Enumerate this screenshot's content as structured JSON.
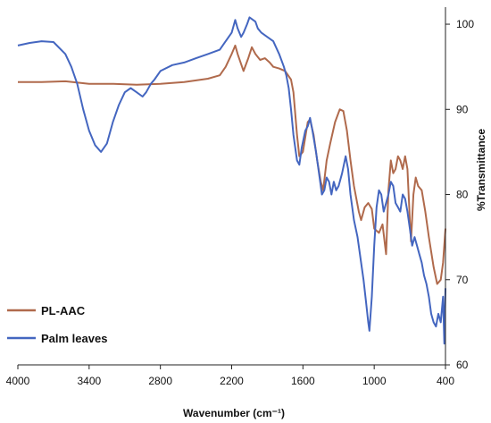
{
  "chart_data": {
    "type": "line",
    "xlabel": "Wavenumber (cm⁻¹)",
    "ylabel": "%Transmittance",
    "xlim": [
      4000,
      400
    ],
    "ylim": [
      60,
      102
    ],
    "x_ticks": [
      4000,
      3400,
      2800,
      2200,
      1600,
      1000,
      400
    ],
    "y_ticks": [
      60,
      70,
      80,
      90,
      100
    ],
    "y_axis_side": "right",
    "grid": false,
    "legend_position": "bottom-left",
    "series": [
      {
        "name": "PL-AAC",
        "color": "#b06a4c",
        "points": [
          [
            4000,
            93.2
          ],
          [
            3800,
            93.2
          ],
          [
            3600,
            93.3
          ],
          [
            3400,
            93.0
          ],
          [
            3200,
            93.0
          ],
          [
            3000,
            92.9
          ],
          [
            2800,
            93.0
          ],
          [
            2600,
            93.2
          ],
          [
            2400,
            93.6
          ],
          [
            2300,
            94.0
          ],
          [
            2250,
            95.0
          ],
          [
            2200,
            96.5
          ],
          [
            2170,
            97.5
          ],
          [
            2150,
            96.5
          ],
          [
            2100,
            94.5
          ],
          [
            2060,
            96.0
          ],
          [
            2030,
            97.3
          ],
          [
            2000,
            96.5
          ],
          [
            1960,
            95.8
          ],
          [
            1920,
            96.0
          ],
          [
            1880,
            95.5
          ],
          [
            1850,
            95.0
          ],
          [
            1800,
            94.8
          ],
          [
            1750,
            94.5
          ],
          [
            1700,
            93.5
          ],
          [
            1680,
            92.0
          ],
          [
            1650,
            87.0
          ],
          [
            1630,
            84.5
          ],
          [
            1600,
            85.0
          ],
          [
            1560,
            88.5
          ],
          [
            1540,
            88.8
          ],
          [
            1510,
            87.0
          ],
          [
            1480,
            84.0
          ],
          [
            1450,
            81.5
          ],
          [
            1430,
            80.5
          ],
          [
            1400,
            84.0
          ],
          [
            1370,
            86.0
          ],
          [
            1330,
            88.5
          ],
          [
            1290,
            90.0
          ],
          [
            1260,
            89.8
          ],
          [
            1230,
            87.5
          ],
          [
            1200,
            84.0
          ],
          [
            1170,
            81.0
          ],
          [
            1130,
            78.0
          ],
          [
            1110,
            77.0
          ],
          [
            1080,
            78.5
          ],
          [
            1050,
            79.0
          ],
          [
            1020,
            78.3
          ],
          [
            1000,
            76.0
          ],
          [
            960,
            75.5
          ],
          [
            930,
            76.5
          ],
          [
            900,
            73.0
          ],
          [
            880,
            80.5
          ],
          [
            860,
            84.0
          ],
          [
            840,
            82.5
          ],
          [
            820,
            83.0
          ],
          [
            800,
            84.5
          ],
          [
            780,
            84.0
          ],
          [
            760,
            83.0
          ],
          [
            740,
            84.5
          ],
          [
            720,
            83.0
          ],
          [
            700,
            77.0
          ],
          [
            690,
            74.5
          ],
          [
            670,
            80.0
          ],
          [
            650,
            82.0
          ],
          [
            630,
            81.0
          ],
          [
            600,
            80.5
          ],
          [
            570,
            78.0
          ],
          [
            540,
            75.0
          ],
          [
            500,
            71.5
          ],
          [
            470,
            69.5
          ],
          [
            440,
            70.0
          ],
          [
            420,
            72.0
          ],
          [
            400,
            76.0
          ]
        ]
      },
      {
        "name": "Palm leaves",
        "color": "#4466c0",
        "points": [
          [
            4000,
            97.5
          ],
          [
            3900,
            97.8
          ],
          [
            3800,
            98.0
          ],
          [
            3700,
            97.9
          ],
          [
            3600,
            96.5
          ],
          [
            3550,
            95.0
          ],
          [
            3500,
            93.0
          ],
          [
            3450,
            90.0
          ],
          [
            3400,
            87.5
          ],
          [
            3350,
            85.8
          ],
          [
            3300,
            85.0
          ],
          [
            3250,
            86.0
          ],
          [
            3200,
            88.5
          ],
          [
            3150,
            90.5
          ],
          [
            3100,
            92.0
          ],
          [
            3050,
            92.5
          ],
          [
            3000,
            92.0
          ],
          [
            2950,
            91.5
          ],
          [
            2920,
            92.0
          ],
          [
            2880,
            93.0
          ],
          [
            2850,
            93.5
          ],
          [
            2800,
            94.5
          ],
          [
            2700,
            95.2
          ],
          [
            2600,
            95.5
          ],
          [
            2500,
            96.0
          ],
          [
            2400,
            96.5
          ],
          [
            2300,
            97.0
          ],
          [
            2250,
            98.0
          ],
          [
            2200,
            99.0
          ],
          [
            2170,
            100.5
          ],
          [
            2150,
            99.5
          ],
          [
            2120,
            98.5
          ],
          [
            2100,
            99.0
          ],
          [
            2070,
            100.0
          ],
          [
            2050,
            100.8
          ],
          [
            2020,
            100.5
          ],
          [
            2000,
            100.3
          ],
          [
            1980,
            99.5
          ],
          [
            1950,
            99.0
          ],
          [
            1900,
            98.5
          ],
          [
            1850,
            98.0
          ],
          [
            1800,
            96.5
          ],
          [
            1760,
            95.0
          ],
          [
            1740,
            94.0
          ],
          [
            1720,
            92.5
          ],
          [
            1700,
            90.0
          ],
          [
            1680,
            87.0
          ],
          [
            1650,
            84.0
          ],
          [
            1630,
            83.5
          ],
          [
            1610,
            85.5
          ],
          [
            1580,
            87.5
          ],
          [
            1560,
            88.0
          ],
          [
            1540,
            89.0
          ],
          [
            1520,
            87.5
          ],
          [
            1490,
            85.0
          ],
          [
            1460,
            82.0
          ],
          [
            1440,
            80.0
          ],
          [
            1420,
            80.5
          ],
          [
            1400,
            82.0
          ],
          [
            1380,
            81.5
          ],
          [
            1360,
            80.0
          ],
          [
            1340,
            81.5
          ],
          [
            1320,
            80.5
          ],
          [
            1300,
            81.0
          ],
          [
            1270,
            82.5
          ],
          [
            1240,
            84.5
          ],
          [
            1220,
            83.0
          ],
          [
            1200,
            80.0
          ],
          [
            1170,
            77.0
          ],
          [
            1140,
            75.0
          ],
          [
            1110,
            72.0
          ],
          [
            1090,
            70.0
          ],
          [
            1070,
            67.5
          ],
          [
            1050,
            65.0
          ],
          [
            1040,
            64.0
          ],
          [
            1020,
            68.0
          ],
          [
            1000,
            74.0
          ],
          [
            980,
            78.5
          ],
          [
            960,
            80.5
          ],
          [
            940,
            80.0
          ],
          [
            920,
            78.0
          ],
          [
            900,
            79.0
          ],
          [
            880,
            80.0
          ],
          [
            860,
            81.5
          ],
          [
            840,
            81.0
          ],
          [
            820,
            79.0
          ],
          [
            800,
            78.5
          ],
          [
            780,
            78.0
          ],
          [
            760,
            80.0
          ],
          [
            740,
            79.5
          ],
          [
            720,
            78.0
          ],
          [
            700,
            76.0
          ],
          [
            680,
            74.0
          ],
          [
            660,
            75.0
          ],
          [
            640,
            74.0
          ],
          [
            620,
            73.0
          ],
          [
            600,
            72.0
          ],
          [
            580,
            70.5
          ],
          [
            560,
            69.5
          ],
          [
            540,
            68.0
          ],
          [
            520,
            66.0
          ],
          [
            500,
            65.0
          ],
          [
            480,
            64.5
          ],
          [
            460,
            66.0
          ],
          [
            440,
            65.0
          ],
          [
            420,
            68.0
          ],
          [
            410,
            62.5
          ],
          [
            400,
            69.0
          ]
        ]
      }
    ]
  }
}
